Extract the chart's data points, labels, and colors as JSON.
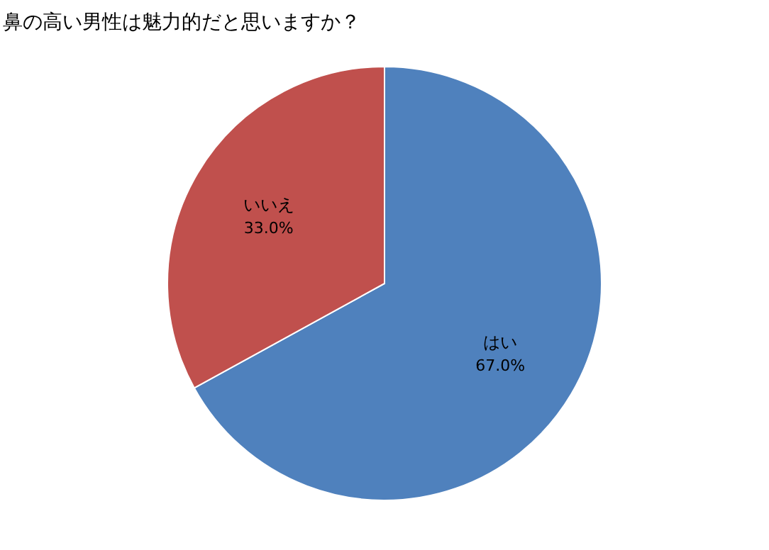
{
  "chart_data": {
    "type": "pie",
    "title": "鼻の高い男性は魅力的だと思いますか？",
    "categories": [
      "はい",
      "いいえ"
    ],
    "values": [
      67.0,
      33.0
    ],
    "value_labels": [
      "67.0%",
      "33.0%"
    ],
    "colors": [
      "#4f81bd",
      "#c0504d"
    ],
    "legend": false
  }
}
